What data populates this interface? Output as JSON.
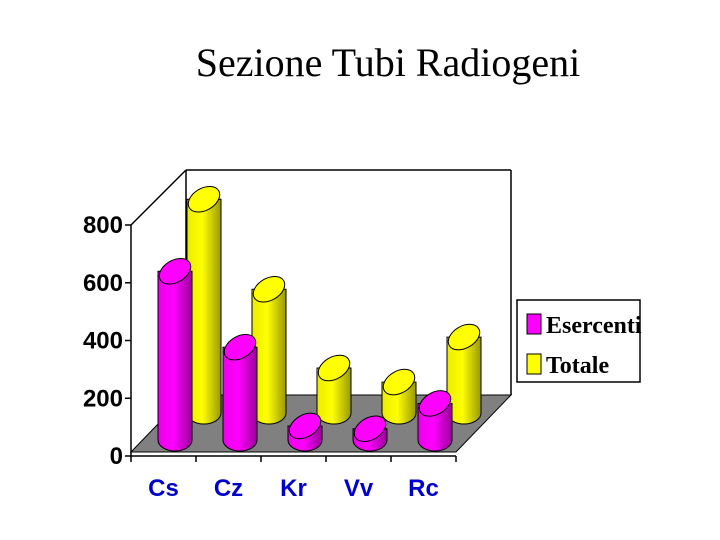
{
  "chart_data": {
    "type": "bar",
    "title": "Sezione Tubi Radiogeni",
    "xlabel": "",
    "ylabel": "",
    "categories": [
      "Cs",
      "Cz",
      "Kr",
      "Vv",
      "Rc"
    ],
    "series": [
      {
        "name": "Esercenti",
        "color": "#ff00ff",
        "values": [
          600,
          330,
          50,
          40,
          130
        ]
      },
      {
        "name": "Totale",
        "color": "#ffff00",
        "values": [
          760,
          440,
          160,
          110,
          270
        ]
      }
    ],
    "ylim": [
      0,
      800
    ],
    "yticks": [
      "0",
      "200",
      "400",
      "600",
      "800"
    ],
    "legend": "right",
    "bar_shape": "cylinder",
    "floor_color": "#808080"
  }
}
